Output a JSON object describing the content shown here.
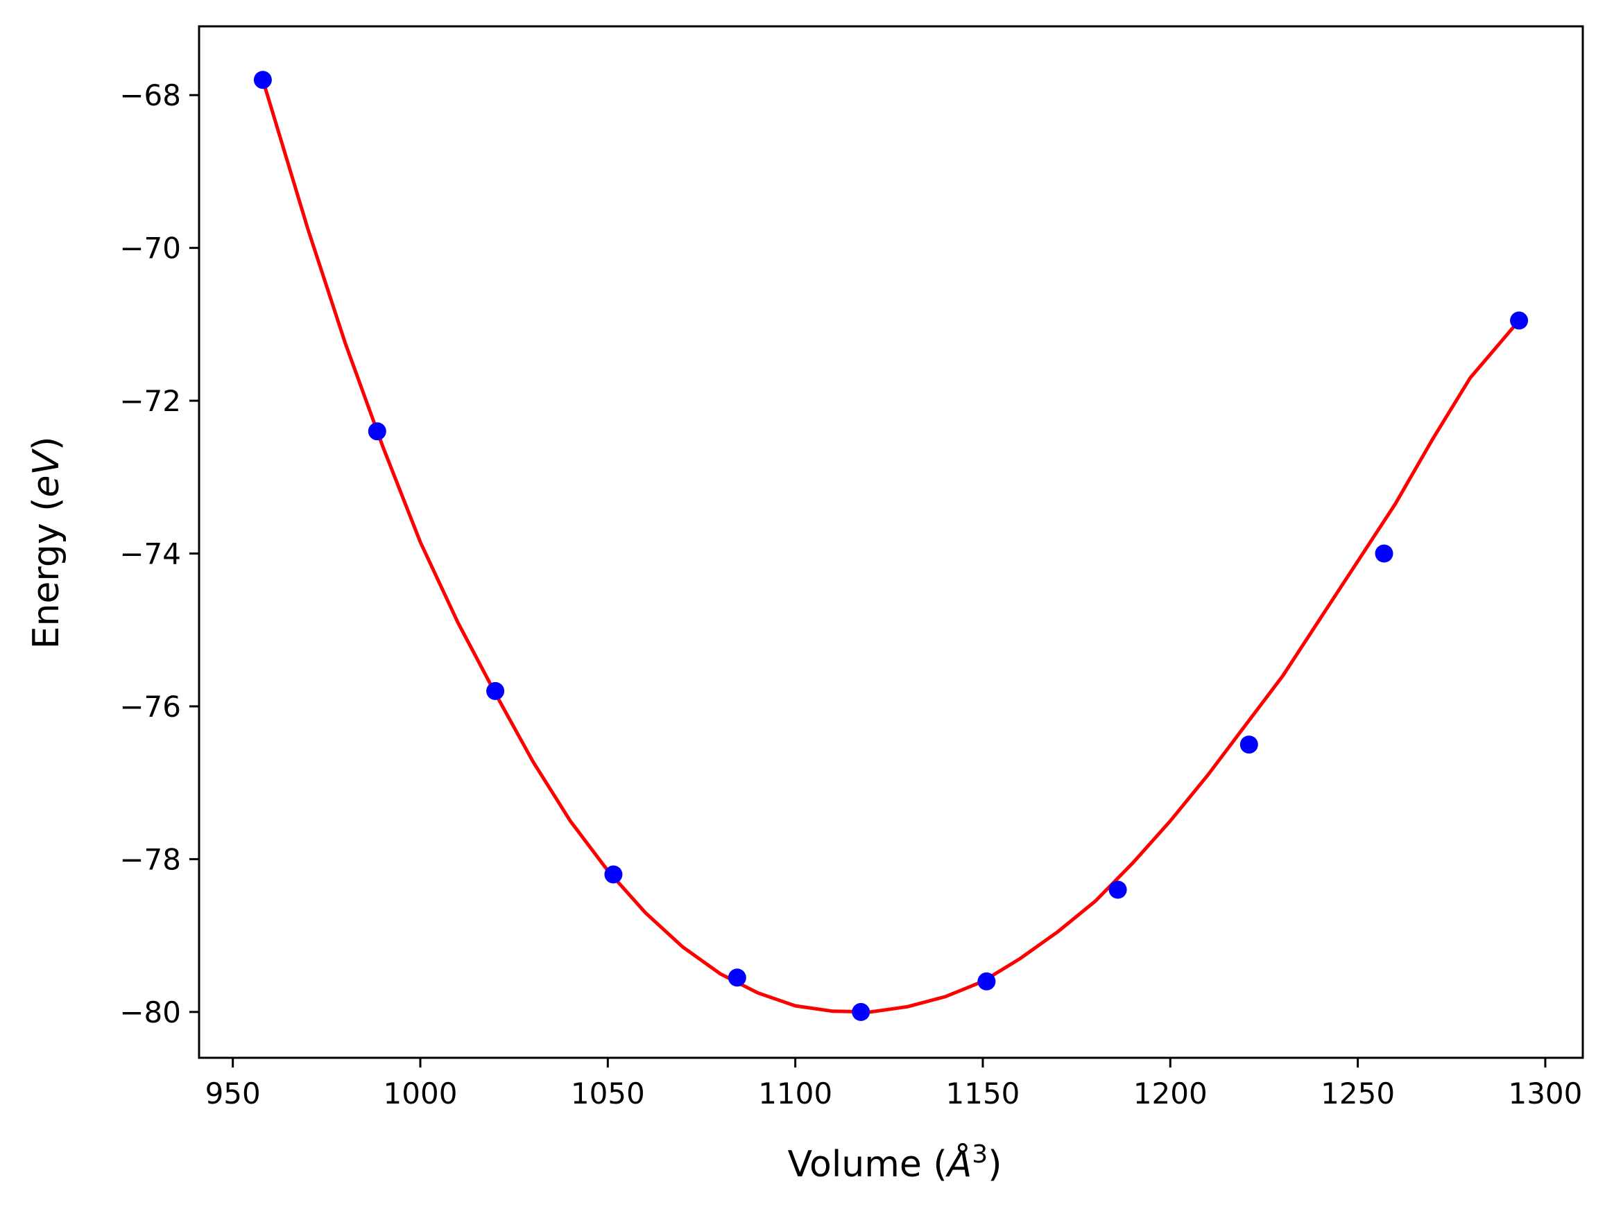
{
  "chart_data": {
    "type": "scatter",
    "title": "",
    "xlabel": "Volume (Å³)",
    "ylabel": "Energy (eV)",
    "xlabel_parts": {
      "pre": "Volume (",
      "math": "Å",
      "sup": "3",
      "post": ")"
    },
    "ylabel_parts": {
      "pre": "Energy (",
      "math": "eV",
      "post": ")"
    },
    "xlim": [
      941,
      1310
    ],
    "ylim": [
      -80.6,
      -67.1
    ],
    "xticks": [
      950,
      1000,
      1050,
      1100,
      1150,
      1200,
      1250,
      1300
    ],
    "yticks": [
      -68,
      -70,
      -72,
      -74,
      -76,
      -78,
      -80
    ],
    "grid": false,
    "legend": "none",
    "series": [
      {
        "kind": "points",
        "color": "#0000ff",
        "x": [
          958.0,
          988.5,
          1020.0,
          1051.5,
          1084.5,
          1117.5,
          1151.0,
          1186.0,
          1221.0,
          1257.0,
          1293.0
        ],
        "y": [
          -67.8,
          -72.4,
          -75.8,
          -78.2,
          -79.55,
          -80.0,
          -79.6,
          -78.4,
          -76.5,
          -74.0,
          -70.95
        ]
      },
      {
        "kind": "fit-curve",
        "color": "#ff0000",
        "x": [
          958,
          970,
          980,
          990,
          1000,
          1010,
          1020,
          1030,
          1040,
          1050,
          1060,
          1070,
          1080,
          1090,
          1100,
          1110,
          1120,
          1130,
          1140,
          1150,
          1160,
          1170,
          1180,
          1190,
          1200,
          1210,
          1220,
          1230,
          1240,
          1250,
          1260,
          1270,
          1280,
          1293
        ],
        "y": [
          -67.8,
          -69.75,
          -71.25,
          -72.6,
          -73.85,
          -74.9,
          -75.83,
          -76.72,
          -77.5,
          -78.15,
          -78.7,
          -79.15,
          -79.5,
          -79.75,
          -79.92,
          -79.99,
          -80.0,
          -79.93,
          -79.8,
          -79.6,
          -79.3,
          -78.95,
          -78.55,
          -78.05,
          -77.5,
          -76.9,
          -76.25,
          -75.6,
          -74.85,
          -74.1,
          -73.35,
          -72.5,
          -71.7,
          -70.95
        ]
      }
    ],
    "colors": {
      "frame": "#000000",
      "points": "#0000ff",
      "fit": "#ff0000"
    }
  }
}
